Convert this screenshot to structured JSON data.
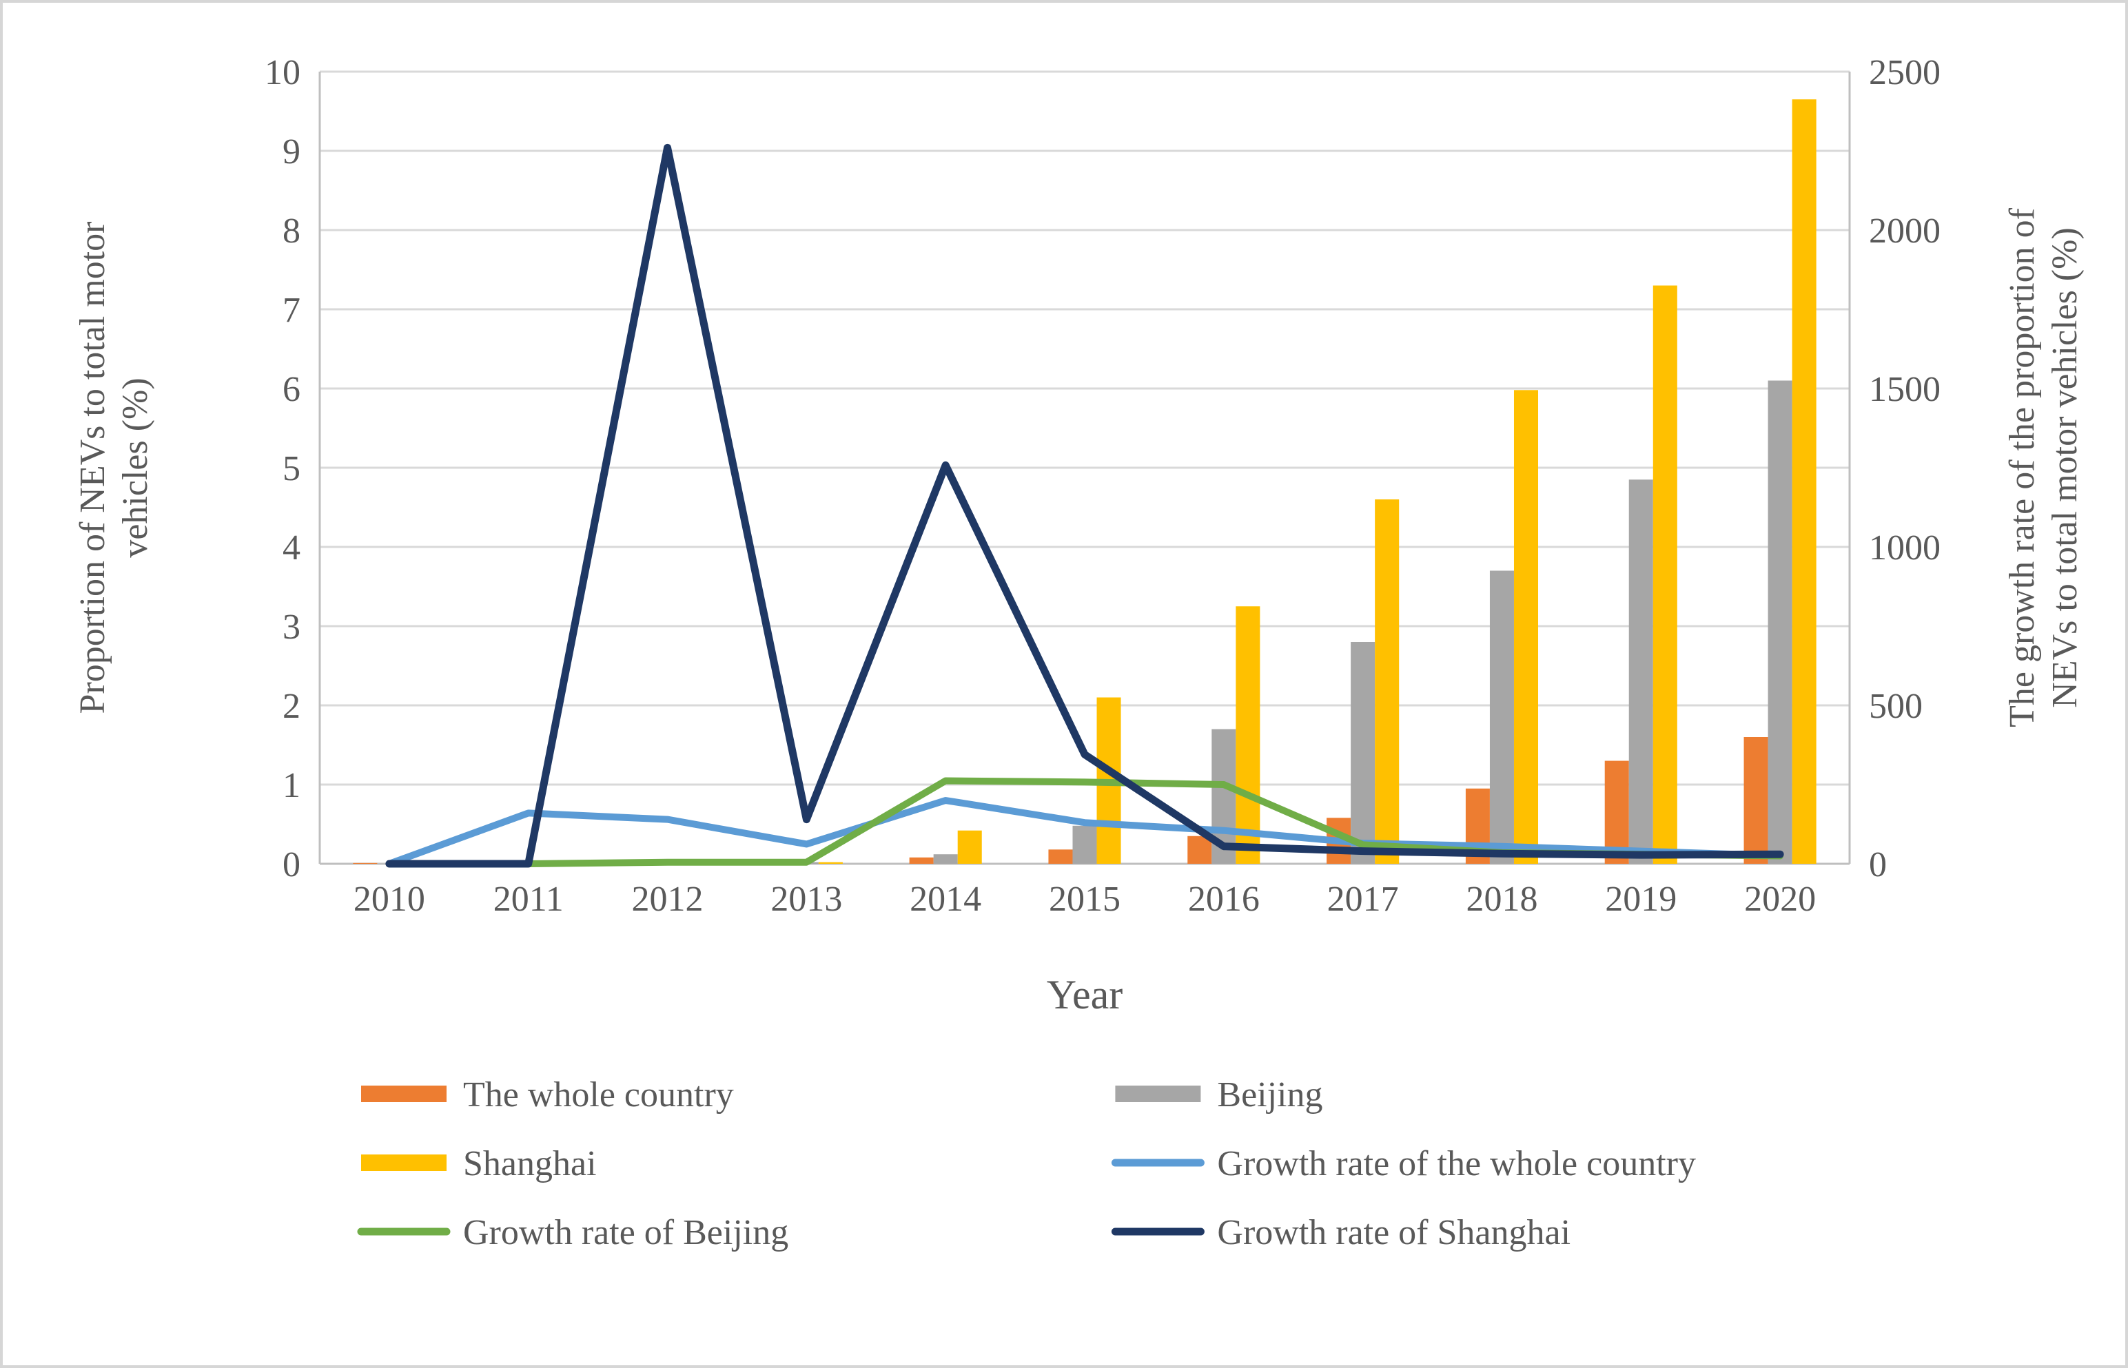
{
  "chart": {
    "type": "combo-bar-line-dual-axis",
    "background_color": "#ffffff",
    "outer_border_color": "#d6d6d6",
    "plot_border_color": "#bfbfbf",
    "grid_color": "#d9d9d9",
    "axis_text_color": "#595959",
    "categories": [
      "2010",
      "2011",
      "2012",
      "2013",
      "2014",
      "2015",
      "2016",
      "2017",
      "2018",
      "2019",
      "2020"
    ],
    "x_axis": {
      "title": "Year",
      "title_fontsize": 60,
      "tick_fontsize": 52
    },
    "y_left": {
      "title": "Proportion of NEVs to total motor vehicles (%)",
      "title_fontsize": 52,
      "min": 0,
      "max": 10,
      "step": 1,
      "tick_fontsize": 52,
      "ticks": [
        0,
        1,
        2,
        3,
        4,
        5,
        6,
        7,
        8,
        9,
        10
      ]
    },
    "y_right": {
      "title": "The growth rate of the proportion of NEVs to total motor vehicles (%)",
      "title_fontsize": 52,
      "min": 0,
      "max": 2500,
      "step": 500,
      "tick_fontsize": 52,
      "ticks": [
        0,
        500,
        1000,
        1500,
        2000,
        2500
      ]
    },
    "bar_group_width_ratio": 0.62,
    "bar_width_ratio": 0.28,
    "bars": [
      {
        "name": "The whole country",
        "color": "#ed7d31",
        "values": [
          0.01,
          0.01,
          0.01,
          0.02,
          0.08,
          0.18,
          0.35,
          0.58,
          0.95,
          1.3,
          1.6
        ]
      },
      {
        "name": "Beijing",
        "color": "#a6a6a6",
        "values": [
          0.0,
          0.0,
          0.0,
          0.02,
          0.12,
          0.48,
          1.7,
          2.8,
          3.7,
          4.85,
          6.1
        ]
      },
      {
        "name": "Shanghai",
        "color": "#ffc000",
        "values": [
          0.0,
          0.0,
          0.01,
          0.02,
          0.42,
          2.1,
          3.25,
          4.6,
          5.98,
          7.3,
          9.65
        ]
      }
    ],
    "lines": [
      {
        "name": "Growth rate of the whole country",
        "color": "#5b9bd5",
        "stroke_width": 10,
        "values": [
          0,
          160,
          140,
          62,
          200,
          130,
          105,
          65,
          55,
          40,
          25
        ]
      },
      {
        "name": "Growth rate of Beijing",
        "color": "#70ad47",
        "stroke_width": 10,
        "values": [
          0,
          0,
          5,
          5,
          262,
          258,
          250,
          60,
          35,
          30,
          25
        ]
      },
      {
        "name": "Growth rate of  Shanghai",
        "color": "#1f3864",
        "stroke_width": 11,
        "values": [
          0,
          0,
          2260,
          140,
          1258,
          345,
          55,
          40,
          32,
          28,
          30
        ]
      }
    ],
    "legend": {
      "layout": "2-col",
      "fontsize": 52,
      "swatch_width": 124,
      "swatch_height": 24,
      "items": [
        {
          "kind": "bar",
          "label": "The whole country",
          "color": "#ed7d31"
        },
        {
          "kind": "bar",
          "label": "Beijing",
          "color": "#a6a6a6"
        },
        {
          "kind": "bar",
          "label": "Shanghai",
          "color": "#ffc000"
        },
        {
          "kind": "line",
          "label": "Growth rate of the whole country",
          "color": "#5b9bd5"
        },
        {
          "kind": "line",
          "label": "Growth rate of Beijing",
          "color": "#70ad47"
        },
        {
          "kind": "line",
          "label": "Growth rate of  Shanghai",
          "color": "#1f3864"
        }
      ]
    }
  }
}
